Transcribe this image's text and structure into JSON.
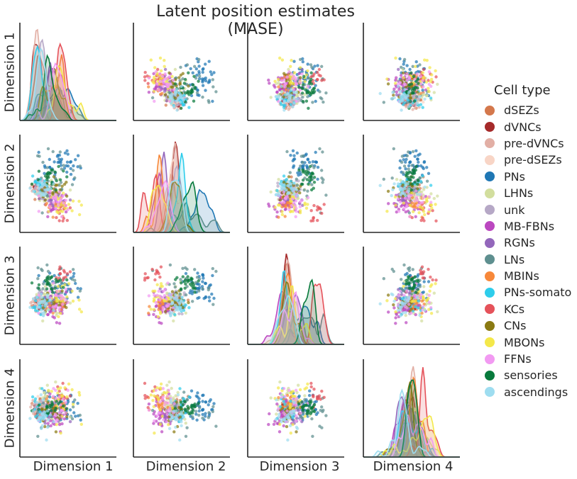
{
  "chart_data": {
    "type": "scatter",
    "title": "Latent position estimates (MASE)",
    "dimensions": [
      "Dimension 1",
      "Dimension 2",
      "Dimension 3",
      "Dimension 4"
    ],
    "diagonal": "kde",
    "grid": false,
    "legend": {
      "title": "Cell type",
      "placement": "right",
      "entries": [
        {
          "name": "dSEZs",
          "color": "#D4784C"
        },
        {
          "name": "dVNCs",
          "color": "#A52A2A"
        },
        {
          "name": "pre-dVNCs",
          "color": "#E2AFA5"
        },
        {
          "name": "pre-dSEZs",
          "color": "#F8D5C6"
        },
        {
          "name": "PNs",
          "color": "#1F77B4"
        },
        {
          "name": "LHNs",
          "color": "#D2DE9E"
        },
        {
          "name": "unk",
          "color": "#B6A8C6"
        },
        {
          "name": "MB-FBNs",
          "color": "#BB48C0"
        },
        {
          "name": "RGNs",
          "color": "#9367BB"
        },
        {
          "name": "LNs",
          "color": "#5E8F8F"
        },
        {
          "name": "MBINs",
          "color": "#F7883A"
        },
        {
          "name": "PNs-somato",
          "color": "#2ECDEB"
        },
        {
          "name": "KCs",
          "color": "#E5525A"
        },
        {
          "name": "CNs",
          "color": "#8A7A12"
        },
        {
          "name": "MBONs",
          "color": "#F4E84A"
        },
        {
          "name": "FFNs",
          "color": "#F29AF2"
        },
        {
          "name": "sensories",
          "color": "#087A3C"
        },
        {
          "name": "ascendings",
          "color": "#9EDDF0"
        }
      ]
    }
  }
}
